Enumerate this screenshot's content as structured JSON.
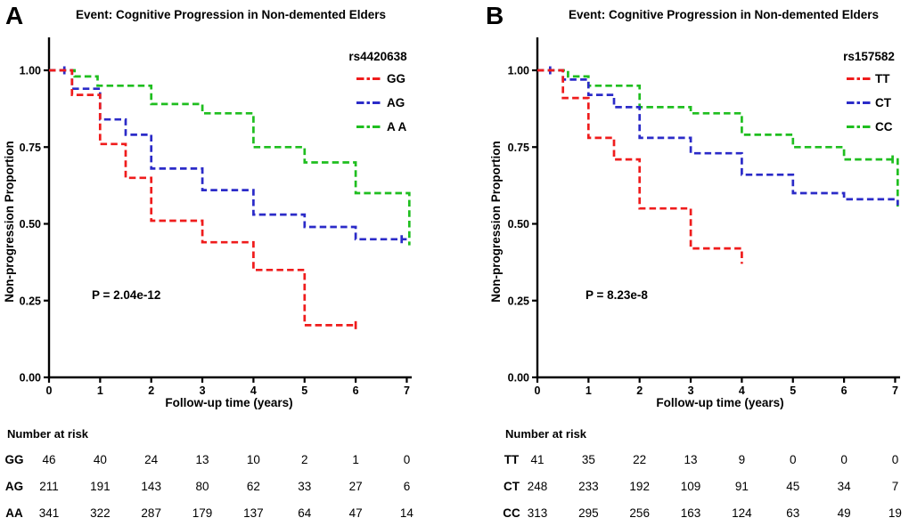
{
  "colors": {
    "axis": "#000000",
    "red": "#ef1c1c",
    "blue": "#2b2bc8",
    "green": "#1fbe1f"
  },
  "panels": [
    {
      "label": "A"
    },
    {
      "label": "B"
    }
  ],
  "chart_data": [
    {
      "type": "line",
      "subtype": "kaplan-meier-step",
      "title": "Event: Cognitive Progression in Non-demented Elders",
      "xlabel": "Follow-up time (years)",
      "ylabel": "Non-progression Proportion",
      "annotation": "P = 2.04e-12",
      "legend_title": "rs4420638",
      "legend_position": "top-right",
      "grid": false,
      "xlim": [
        0,
        7.2
      ],
      "ylim": [
        0,
        1.1
      ],
      "x_ticks": [
        0,
        1,
        2,
        3,
        4,
        5,
        6,
        7
      ],
      "y_ticks": [
        {
          "value": 1.0,
          "label": "1.00"
        },
        {
          "value": 0.75,
          "label": "0.75"
        },
        {
          "value": 0.5,
          "label": "0.50"
        },
        {
          "value": 0.25,
          "label": "0.25"
        },
        {
          "value": 0.0,
          "label": "0.00"
        }
      ],
      "series": [
        {
          "name": "A A",
          "color": "green",
          "points": [
            [
              0,
              1.0
            ],
            [
              0.5,
              1.0
            ],
            [
              0.5,
              0.98
            ],
            [
              0.95,
              0.98
            ],
            [
              0.95,
              0.95
            ],
            [
              2,
              0.95
            ],
            [
              2,
              0.89
            ],
            [
              3,
              0.89
            ],
            [
              3,
              0.86
            ],
            [
              4,
              0.86
            ],
            [
              4,
              0.75
            ],
            [
              5,
              0.75
            ],
            [
              5,
              0.7
            ],
            [
              6,
              0.7
            ],
            [
              6,
              0.6
            ],
            [
              7.05,
              0.6
            ],
            [
              7.05,
              0.43
            ]
          ],
          "censor_ticks": []
        },
        {
          "name": "AG",
          "color": "blue",
          "points": [
            [
              0,
              1.0
            ],
            [
              0.45,
              1.0
            ],
            [
              0.45,
              0.94
            ],
            [
              1,
              0.94
            ],
            [
              1,
              0.84
            ],
            [
              1.5,
              0.84
            ],
            [
              1.5,
              0.79
            ],
            [
              2,
              0.79
            ],
            [
              2,
              0.68
            ],
            [
              3,
              0.68
            ],
            [
              3,
              0.61
            ],
            [
              4,
              0.61
            ],
            [
              4,
              0.53
            ],
            [
              5,
              0.53
            ],
            [
              5,
              0.49
            ],
            [
              6,
              0.49
            ],
            [
              6,
              0.45
            ],
            [
              7,
              0.45
            ]
          ],
          "censor_ticks": [
            [
              0.3,
              1.0
            ],
            [
              6.9,
              0.45
            ]
          ]
        },
        {
          "name": "GG",
          "color": "red",
          "points": [
            [
              0,
              1.0
            ],
            [
              0.45,
              1.0
            ],
            [
              0.45,
              0.92
            ],
            [
              1,
              0.92
            ],
            [
              1,
              0.76
            ],
            [
              1.5,
              0.76
            ],
            [
              1.5,
              0.65
            ],
            [
              2,
              0.65
            ],
            [
              2,
              0.51
            ],
            [
              3,
              0.51
            ],
            [
              3,
              0.44
            ],
            [
              4,
              0.44
            ],
            [
              4,
              0.35
            ],
            [
              5,
              0.35
            ],
            [
              5,
              0.17
            ],
            [
              6,
              0.17
            ]
          ],
          "censor_ticks": [
            [
              6,
              0.17
            ]
          ]
        }
      ],
      "risk_table": {
        "header": "Number at risk",
        "rows": [
          {
            "label": "GG",
            "color": "red",
            "values": [
              46,
              40,
              24,
              13,
              10,
              2,
              1,
              0
            ]
          },
          {
            "label": "AG",
            "color": "blue",
            "values": [
              211,
              191,
              143,
              80,
              62,
              33,
              27,
              6
            ]
          },
          {
            "label": "AA",
            "color": "green",
            "values": [
              341,
              322,
              287,
              179,
              137,
              64,
              47,
              14
            ]
          }
        ]
      }
    },
    {
      "type": "line",
      "subtype": "kaplan-meier-step",
      "title": "Event: Cognitive Progression in Non-demented Elders",
      "xlabel": "Follow-up time (years)",
      "ylabel": "Non-progression Proportion",
      "annotation": "P = 8.23e-8",
      "legend_title": "rs157582",
      "legend_position": "top-right",
      "grid": false,
      "xlim": [
        0,
        7.2
      ],
      "ylim": [
        0,
        1.1
      ],
      "x_ticks": [
        0,
        1,
        2,
        3,
        4,
        5,
        6,
        7
      ],
      "y_ticks": [
        {
          "value": 1.0,
          "label": "1.00"
        },
        {
          "value": 0.75,
          "label": "0.75"
        },
        {
          "value": 0.5,
          "label": "0.50"
        },
        {
          "value": 0.25,
          "label": "0.25"
        },
        {
          "value": 0.0,
          "label": "0.00"
        }
      ],
      "series": [
        {
          "name": "CC",
          "color": "green",
          "points": [
            [
              0,
              1.0
            ],
            [
              0.6,
              1.0
            ],
            [
              0.6,
              0.98
            ],
            [
              1,
              0.98
            ],
            [
              1,
              0.95
            ],
            [
              2,
              0.95
            ],
            [
              2,
              0.88
            ],
            [
              3,
              0.88
            ],
            [
              3,
              0.86
            ],
            [
              4,
              0.86
            ],
            [
              4,
              0.79
            ],
            [
              5,
              0.79
            ],
            [
              5,
              0.75
            ],
            [
              6,
              0.75
            ],
            [
              6,
              0.71
            ],
            [
              7.05,
              0.71
            ],
            [
              7.05,
              0.55
            ]
          ],
          "censor_ticks": [
            [
              6.95,
              0.71
            ]
          ]
        },
        {
          "name": "CT",
          "color": "blue",
          "points": [
            [
              0,
              1.0
            ],
            [
              0.5,
              1.0
            ],
            [
              0.5,
              0.97
            ],
            [
              1,
              0.97
            ],
            [
              1,
              0.92
            ],
            [
              1.5,
              0.92
            ],
            [
              1.5,
              0.88
            ],
            [
              2,
              0.88
            ],
            [
              2,
              0.78
            ],
            [
              3,
              0.78
            ],
            [
              3,
              0.73
            ],
            [
              4,
              0.73
            ],
            [
              4,
              0.66
            ],
            [
              5,
              0.66
            ],
            [
              5,
              0.6
            ],
            [
              6,
              0.6
            ],
            [
              6,
              0.58
            ],
            [
              7.05,
              0.58
            ],
            [
              7.05,
              0.56
            ]
          ],
          "censor_ticks": [
            [
              0.25,
              1.0
            ]
          ]
        },
        {
          "name": "TT",
          "color": "red",
          "points": [
            [
              0,
              1.0
            ],
            [
              0.5,
              1.0
            ],
            [
              0.5,
              0.91
            ],
            [
              1,
              0.91
            ],
            [
              1,
              0.78
            ],
            [
              1.5,
              0.78
            ],
            [
              1.5,
              0.71
            ],
            [
              2,
              0.71
            ],
            [
              2,
              0.55
            ],
            [
              3,
              0.55
            ],
            [
              3,
              0.42
            ],
            [
              4,
              0.42
            ],
            [
              4,
              0.37
            ]
          ],
          "censor_ticks": []
        }
      ],
      "risk_table": {
        "header": "Number at risk",
        "rows": [
          {
            "label": "TT",
            "color": "red",
            "values": [
              41,
              35,
              22,
              13,
              9,
              0,
              0,
              0
            ]
          },
          {
            "label": "CT",
            "color": "blue",
            "values": [
              248,
              233,
              192,
              109,
              91,
              45,
              34,
              7
            ]
          },
          {
            "label": "CC",
            "color": "green",
            "values": [
              313,
              295,
              256,
              163,
              124,
              63,
              49,
              19
            ]
          }
        ]
      }
    }
  ]
}
